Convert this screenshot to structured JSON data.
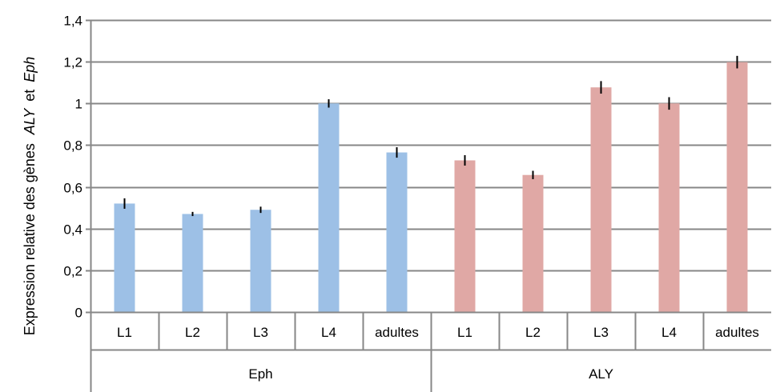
{
  "chart_data": {
    "type": "bar",
    "ylabel_prefix": "Expression relative des gènes",
    "ylabel_gene1": "ALY",
    "ylabel_connector": "et",
    "ylabel_gene2": "Eph",
    "ylim": [
      0,
      1.4
    ],
    "y_ticks": [
      "0",
      "0,2",
      "0,4",
      "0,6",
      "0,8",
      "1",
      "1,2",
      "1,4"
    ],
    "y_tick_values": [
      0,
      0.2,
      0.4,
      0.6,
      0.8,
      1.0,
      1.2,
      1.4
    ],
    "grid": true,
    "groups": [
      {
        "name": "Eph",
        "color": "#9dc0e6",
        "categories": [
          "L1",
          "L2",
          "L3",
          "L4",
          "adultes"
        ],
        "values": [
          0.52,
          0.47,
          0.49,
          1.0,
          0.765
        ],
        "errors": [
          0.025,
          0.01,
          0.015,
          0.02,
          0.025
        ]
      },
      {
        "name": "ALY",
        "color": "#e0a8a5",
        "categories": [
          "L1",
          "L2",
          "L3",
          "L4",
          "adultes"
        ],
        "values": [
          0.727,
          0.657,
          1.077,
          1.0,
          1.198
        ],
        "errors": [
          0.025,
          0.02,
          0.03,
          0.03,
          0.03
        ]
      }
    ]
  }
}
